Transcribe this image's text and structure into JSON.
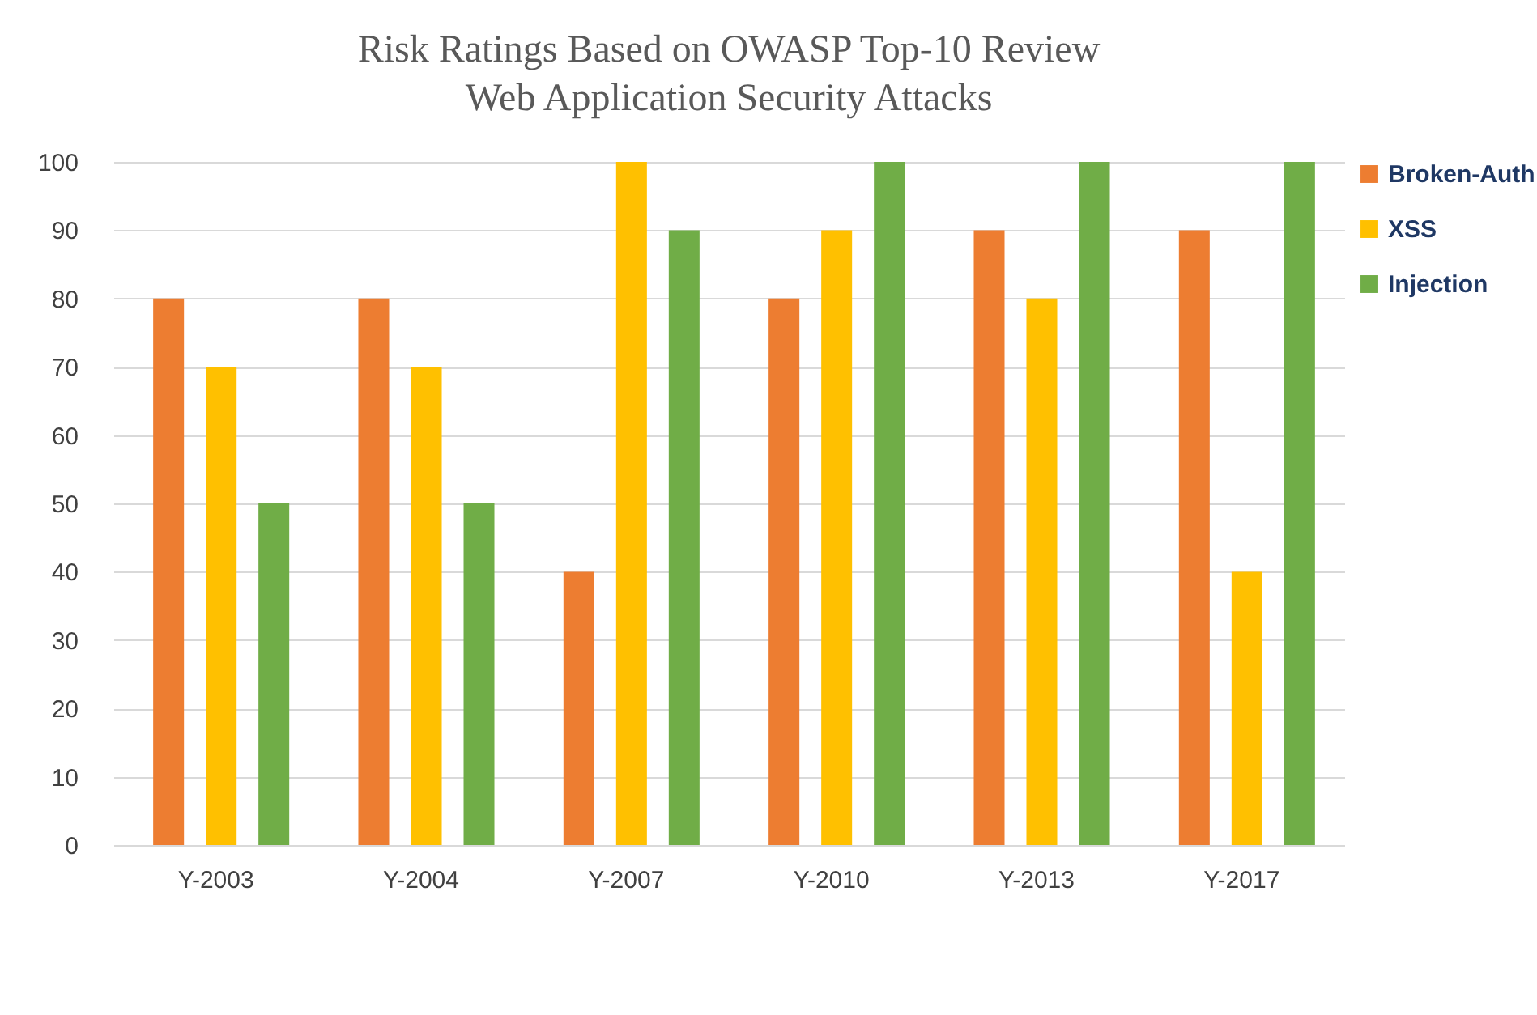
{
  "chart_data": {
    "type": "bar",
    "title": [
      "Risk Ratings Based on OWASP Top-10 Review",
      "Web Application Security Attacks"
    ],
    "categories": [
      "Y-2003",
      "Y-2004",
      "Y-2007",
      "Y-2010",
      "Y-2013",
      "Y-2017"
    ],
    "series": [
      {
        "name": "Broken-Auth",
        "color": "#ed7d31",
        "values": [
          80,
          80,
          40,
          80,
          90,
          90
        ]
      },
      {
        "name": "XSS",
        "color": "#ffc000",
        "values": [
          70,
          70,
          100,
          90,
          80,
          40
        ]
      },
      {
        "name": "Injection",
        "color": "#70ad47",
        "values": [
          50,
          50,
          90,
          100,
          100,
          100
        ]
      }
    ],
    "ylim": [
      0,
      100
    ],
    "yticks": [
      0,
      10,
      20,
      30,
      40,
      50,
      60,
      70,
      80,
      90,
      100
    ],
    "grid": "y",
    "legend": "top right"
  }
}
